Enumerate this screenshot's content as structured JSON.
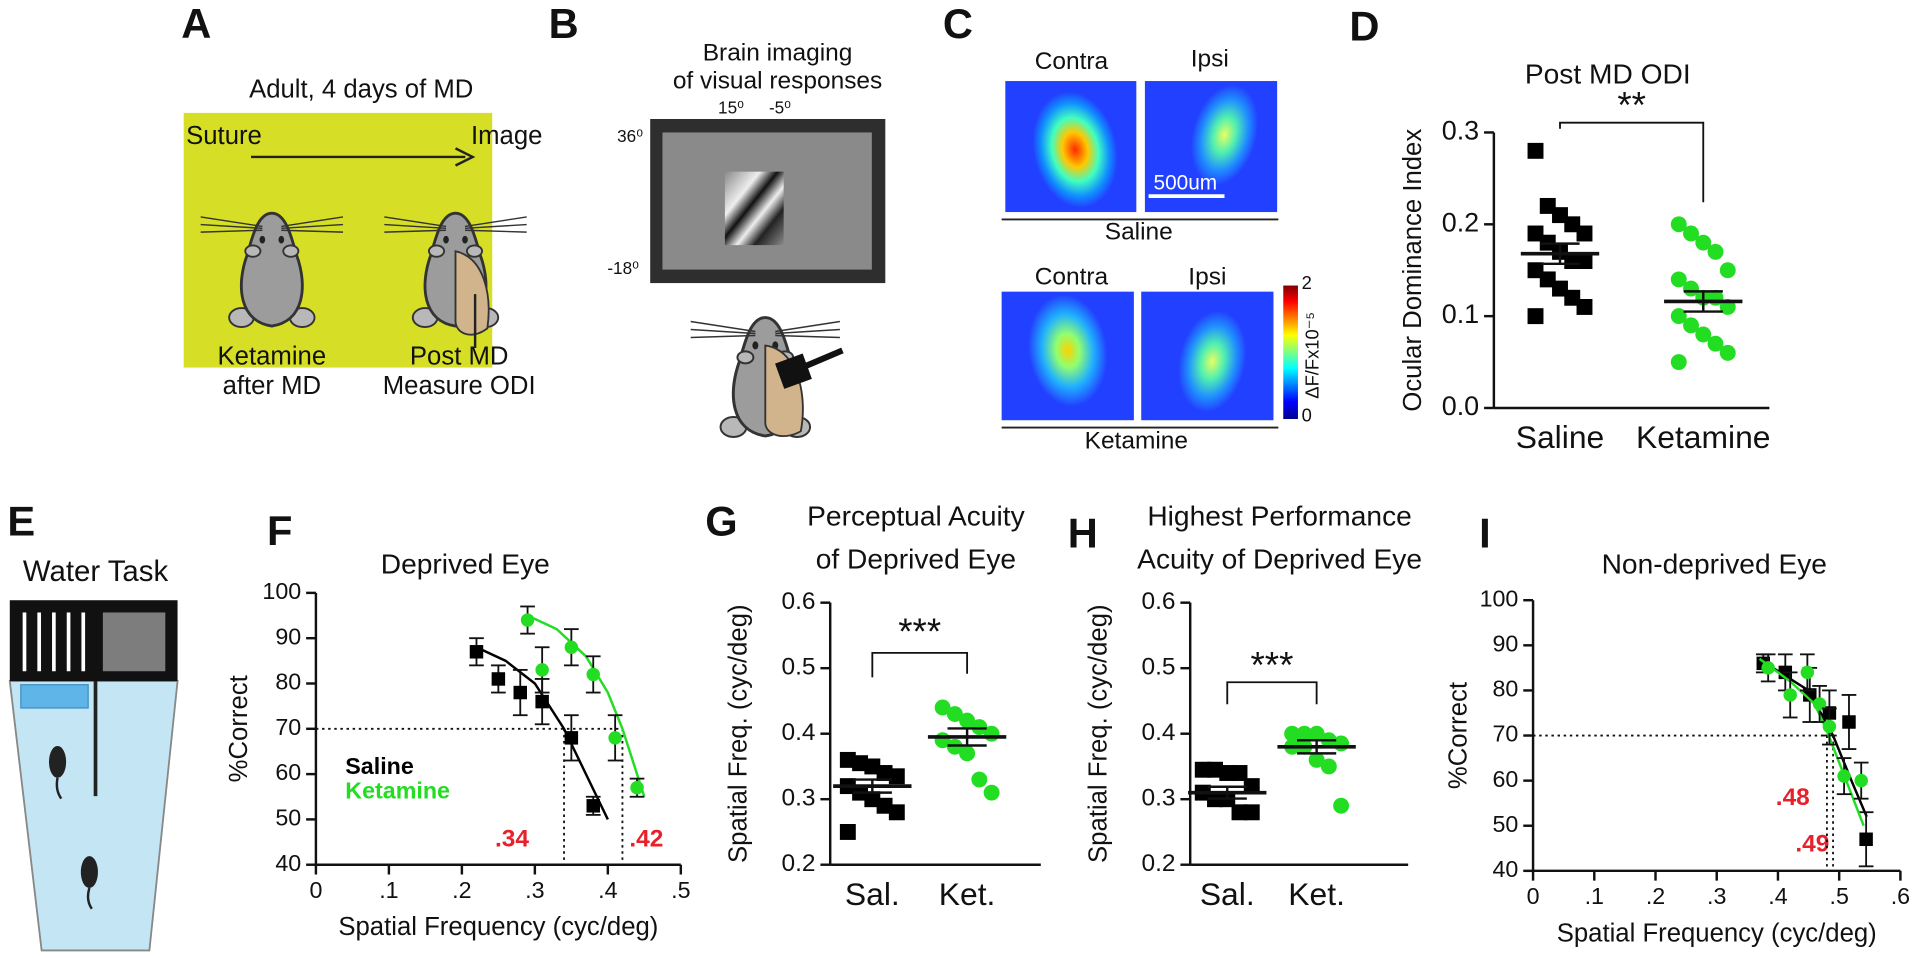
{
  "panel_labels": [
    "A",
    "B",
    "C",
    "D",
    "E",
    "F",
    "G",
    "H",
    "I"
  ],
  "panel_a": {
    "title": "Adult, 4 days of MD",
    "start": "Suture",
    "end": "Image",
    "left_caption": [
      "Ketamine",
      "after MD"
    ],
    "right_caption": [
      "Post MD",
      "Measure ODI"
    ]
  },
  "panel_b": {
    "title": [
      "Brain imaging",
      "of visual responses"
    ],
    "azimuth": [
      "15⁰",
      "-5⁰"
    ],
    "elevation": [
      "36⁰",
      "-18⁰"
    ]
  },
  "panel_c": {
    "columns": [
      "Contra",
      "Ipsi"
    ],
    "rows": [
      "Saline",
      "Ketamine"
    ],
    "scale_bar": "500um",
    "colorbar": {
      "max": 2,
      "min": 0,
      "label": "ΔF/Fx10⁻⁵"
    }
  },
  "panel_e": {
    "title": "Water Task"
  },
  "chart_data": [
    {
      "type": "strip",
      "title": [
        "Post MD ODI"
      ],
      "ylabel": "Ocular Dominance Index",
      "categories": [
        "Saline",
        "Ketamine"
      ],
      "groups": [
        {
          "values": [
            0.28,
            0.22,
            0.21,
            0.2,
            0.19,
            0.19,
            0.18,
            0.17,
            0.16,
            0.16,
            0.15,
            0.14,
            0.13,
            0.12,
            0.11,
            0.1
          ],
          "mean": 0.168,
          "sem": 0.011,
          "color": "#000000",
          "marker": "square"
        },
        {
          "values": [
            0.2,
            0.19,
            0.18,
            0.17,
            0.15,
            0.14,
            0.13,
            0.12,
            0.12,
            0.11,
            0.1,
            0.09,
            0.08,
            0.07,
            0.06,
            0.05
          ],
          "mean": 0.116,
          "sem": 0.011,
          "color": "#22dd22",
          "marker": "circle"
        }
      ],
      "ylim": [
        0,
        0.3
      ],
      "yticks": [
        {
          "value": 0,
          "label": "0.0"
        },
        0.1,
        0.2,
        0.3
      ],
      "significance": "**"
    },
    {
      "type": "line",
      "title": [
        "Deprived Eye"
      ],
      "xlabel": "Spatial Frequency  (cyc/deg)",
      "ylabel": "%Correct",
      "xlim": [
        0,
        0.5
      ],
      "xticks": [
        0,
        {
          "value": 0.1,
          "label": ".1"
        },
        {
          "value": 0.2,
          "label": ".2"
        },
        {
          "value": 0.3,
          "label": ".3"
        },
        {
          "value": 0.4,
          "label": ".4"
        },
        {
          "value": 0.5,
          "label": ".5"
        }
      ],
      "ylim": [
        40,
        100
      ],
      "yticks": [
        40,
        50,
        60,
        70,
        80,
        90,
        100
      ],
      "criterion": 70,
      "legend": true,
      "threshold_color": "#e8202a",
      "series": [
        {
          "name": "Saline",
          "color": "#000000",
          "marker": "square",
          "x": [
            0.22,
            0.25,
            0.28,
            0.31,
            0.35,
            0.38
          ],
          "values": [
            87,
            81,
            78,
            76,
            68,
            53
          ],
          "errors": [
            3,
            3,
            5,
            5,
            5,
            2
          ],
          "fit_x": [
            0.22,
            0.26,
            0.3,
            0.34,
            0.37,
            0.4
          ],
          "fit_y": [
            88,
            85,
            80,
            70,
            60,
            50
          ],
          "threshold": 0.34,
          "threshold_label": ".34"
        },
        {
          "name": "Ketamine",
          "color": "#22dd22",
          "marker": "circle",
          "x": [
            0.29,
            0.31,
            0.35,
            0.38,
            0.41,
            0.44
          ],
          "values": [
            94,
            83,
            88,
            82,
            68,
            57
          ],
          "errors": [
            3,
            5,
            4,
            4,
            5,
            2
          ],
          "fit_x": [
            0.29,
            0.33,
            0.37,
            0.4,
            0.42,
            0.44,
            0.45
          ],
          "fit_y": [
            95,
            92,
            86,
            78,
            70,
            60,
            55
          ],
          "threshold": 0.42,
          "threshold_label": ".42"
        }
      ]
    },
    {
      "type": "strip",
      "title": [
        "Perceptual Acuity",
        "of Deprived Eye"
      ],
      "ylabel": "Spatial Freq. (cyc/deg)",
      "categories": [
        "Sal.",
        "Ket."
      ],
      "groups": [
        {
          "values": [
            0.36,
            0.355,
            0.35,
            0.34,
            0.335,
            0.32,
            0.31,
            0.3,
            0.29,
            0.28,
            0.25
          ],
          "mean": 0.32,
          "sem": 0.01,
          "color": "#000000",
          "marker": "square"
        },
        {
          "values": [
            0.44,
            0.43,
            0.42,
            0.41,
            0.4,
            0.39,
            0.38,
            0.37,
            0.33,
            0.31
          ],
          "mean": 0.395,
          "sem": 0.013,
          "color": "#22dd22",
          "marker": "circle"
        }
      ],
      "ylim": [
        0.2,
        0.6
      ],
      "yticks": [
        0.2,
        0.3,
        0.4,
        0.5,
        0.6
      ],
      "significance": "***"
    },
    {
      "type": "strip",
      "title": [
        "Highest Performance",
        "Acuity of Deprived Eye"
      ],
      "ylabel": "Spatial Freq. (cyc/deg)",
      "categories": [
        "Sal.",
        "Ket."
      ],
      "groups": [
        {
          "values": [
            0.345,
            0.345,
            0.34,
            0.34,
            0.32,
            0.31,
            0.3,
            0.3,
            0.28,
            0.28
          ],
          "mean": 0.31,
          "sem": 0.009,
          "color": "#000000",
          "marker": "square"
        },
        {
          "values": [
            0.4,
            0.4,
            0.4,
            0.39,
            0.385,
            0.38,
            0.38,
            0.36,
            0.35,
            0.29
          ],
          "mean": 0.38,
          "sem": 0.01,
          "color": "#22dd22",
          "marker": "circle"
        }
      ],
      "ylim": [
        0.2,
        0.6
      ],
      "yticks": [
        0.2,
        0.3,
        0.4,
        0.5,
        0.6
      ],
      "significance": "***"
    },
    {
      "type": "line",
      "title": [
        "Non-deprived Eye"
      ],
      "xlabel": "Spatial Frequency  (cyc/deg)",
      "ylabel": "%Correct",
      "xlim": [
        0,
        0.6
      ],
      "xticks": [
        0,
        {
          "value": 0.1,
          "label": ".1"
        },
        {
          "value": 0.2,
          "label": ".2"
        },
        {
          "value": 0.3,
          "label": ".3"
        },
        {
          "value": 0.4,
          "label": ".4"
        },
        {
          "value": 0.5,
          "label": ".5"
        },
        {
          "value": 0.6,
          "label": ".6"
        }
      ],
      "ylim": [
        40,
        100
      ],
      "yticks": [
        40,
        50,
        60,
        70,
        80,
        90,
        100
      ],
      "criterion": 70,
      "legend": false,
      "threshold_color": "#e8202a",
      "series": [
        {
          "color": "#000000",
          "marker": "square",
          "x": [
            0.376,
            0.412,
            0.452,
            0.484,
            0.516,
            0.544
          ],
          "values": [
            86,
            84,
            79,
            75,
            73,
            47
          ],
          "errors": [
            2,
            4,
            6,
            5,
            6,
            6
          ],
          "fit_x": [
            0.38,
            0.45,
            0.49,
            0.52,
            0.545
          ],
          "fit_y": [
            86,
            80,
            70,
            60,
            52
          ],
          "threshold": 0.49,
          "threshold_label": ".49"
        },
        {
          "color": "#22dd22",
          "marker": "circle",
          "x": [
            0.384,
            0.42,
            0.448,
            0.468,
            0.484,
            0.508,
            0.536
          ],
          "values": [
            85,
            79,
            84,
            77,
            72,
            61,
            60
          ],
          "errors": [
            3,
            5,
            4,
            4,
            4,
            4,
            4
          ],
          "fit_x": [
            0.37,
            0.42,
            0.46,
            0.48,
            0.5,
            0.52,
            0.54
          ],
          "fit_y": [
            87,
            82,
            77,
            71,
            64,
            57,
            50
          ],
          "threshold": 0.48,
          "threshold_label": ".48"
        }
      ]
    }
  ]
}
